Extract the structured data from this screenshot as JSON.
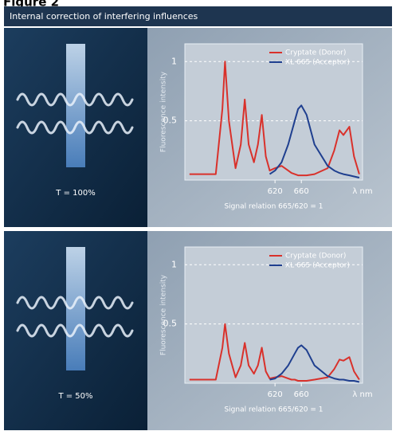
{
  "figure_label": "Figure 2",
  "header": {
    "title": "Internal correction of interfering influences"
  },
  "chart_data": [
    {
      "type": "line",
      "transmission": "T = 100%",
      "caption": "Signal relation 665/620 = 1",
      "ylabel": "Fluorescence intensity",
      "xlabel": "λ nm",
      "x": [
        490,
        530,
        540,
        544,
        550,
        560,
        568,
        574,
        580,
        588,
        594,
        600,
        606,
        612,
        620,
        630,
        640,
        645,
        650,
        655,
        660,
        668,
        680,
        700,
        710,
        718,
        724,
        733,
        740,
        748
      ],
      "series": [
        {
          "name": "Cryptate (Donor)",
          "color": "#d9312b",
          "values": [
            0.05,
            0.05,
            0.6,
            1.0,
            0.5,
            0.1,
            0.3,
            0.68,
            0.3,
            0.15,
            0.3,
            0.55,
            0.2,
            0.08,
            0.1,
            0.12,
            0.08,
            0.06,
            0.05,
            0.04,
            0.04,
            0.04,
            0.05,
            0.1,
            0.25,
            0.42,
            0.38,
            0.45,
            0.2,
            0.05
          ]
        },
        {
          "name": "XL 665 (Acceptor)",
          "color": "#1f3f8f",
          "values": [
            null,
            null,
            null,
            null,
            null,
            null,
            null,
            null,
            null,
            null,
            null,
            null,
            null,
            0.05,
            0.08,
            0.15,
            0.3,
            0.4,
            0.5,
            0.6,
            0.63,
            0.55,
            0.3,
            0.12,
            0.08,
            0.06,
            0.05,
            0.04,
            0.03,
            0.02
          ]
        }
      ],
      "xlim": [
        483,
        753
      ],
      "xticks": [
        620,
        660
      ],
      "ylim": [
        0,
        1.15
      ],
      "yticks": [
        0.5,
        1
      ],
      "grid": true
    },
    {
      "type": "line",
      "transmission": "T = 50%",
      "caption": "Signal relation 665/620 = 1",
      "ylabel": "Fluorescence intensity",
      "xlabel": "λ nm",
      "x": [
        490,
        530,
        540,
        544,
        550,
        560,
        568,
        574,
        580,
        588,
        594,
        600,
        606,
        612,
        620,
        630,
        640,
        645,
        650,
        655,
        660,
        668,
        680,
        700,
        710,
        718,
        724,
        733,
        740,
        748
      ],
      "series": [
        {
          "name": "Cryptate (Donor)",
          "color": "#d9312b",
          "values": [
            0.03,
            0.03,
            0.3,
            0.5,
            0.25,
            0.05,
            0.15,
            0.34,
            0.15,
            0.08,
            0.15,
            0.3,
            0.1,
            0.04,
            0.05,
            0.06,
            0.04,
            0.03,
            0.03,
            0.02,
            0.02,
            0.02,
            0.03,
            0.05,
            0.12,
            0.2,
            0.19,
            0.22,
            0.1,
            0.03
          ]
        },
        {
          "name": "XL 665 (Acceptor)",
          "color": "#1f3f8f",
          "values": [
            null,
            null,
            null,
            null,
            null,
            null,
            null,
            null,
            null,
            null,
            null,
            null,
            null,
            0.03,
            0.04,
            0.08,
            0.15,
            0.2,
            0.25,
            0.3,
            0.32,
            0.28,
            0.15,
            0.06,
            0.04,
            0.03,
            0.03,
            0.02,
            0.02,
            0.01
          ]
        }
      ],
      "xlim": [
        483,
        753
      ],
      "xticks": [
        620,
        660
      ],
      "ylim": [
        0,
        1.15
      ],
      "yticks": [
        0.5,
        1
      ],
      "grid": true
    }
  ]
}
